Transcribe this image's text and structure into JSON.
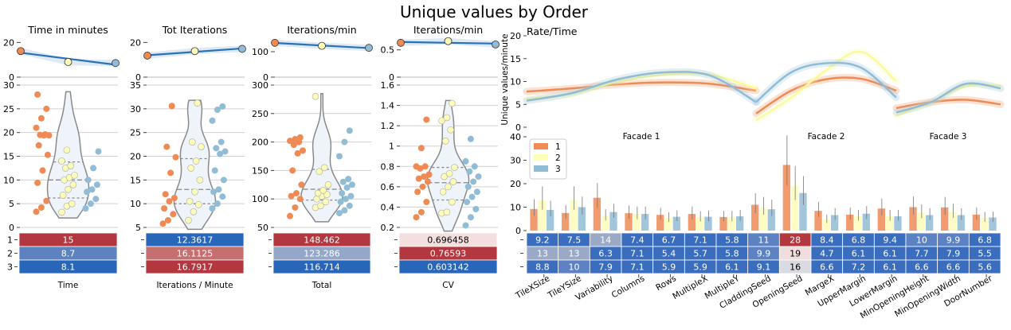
{
  "figure": {
    "title": "Unique values by Order"
  },
  "orders": [
    "1",
    "2",
    "3"
  ],
  "colors": {
    "1": "#ef8a55",
    "2": "#fdfdb8",
    "3": "#90bcd6",
    "line": "#2a72b5",
    "band": "#c6dbef",
    "violet_fill": "#eef4f9",
    "violet_edge": "#8a8a8a"
  },
  "chart_data": [
    {
      "type": "scatter",
      "panel": "top-line",
      "title": "Time in minutes",
      "x": [
        "1",
        "2",
        "3"
      ],
      "values": [
        15,
        8.7,
        8.1
      ],
      "ylim": [
        0,
        22
      ],
      "yticks": [
        0,
        20
      ]
    },
    {
      "type": "scatter",
      "panel": "top-line",
      "title": "Tot Iterations",
      "x": [
        "1",
        "2",
        "3"
      ],
      "values": [
        12.4,
        15.0,
        16.3
      ],
      "ylim": [
        0,
        22
      ],
      "yticks": [
        0,
        20
      ]
    },
    {
      "type": "scatter",
      "panel": "top-line",
      "title": "Iterations/min",
      "x": [
        "1",
        "2",
        "3"
      ],
      "values": [
        135,
        123,
        115
      ],
      "ylim": [
        0,
        150
      ],
      "yticks": [
        0,
        100
      ]
    },
    {
      "type": "scatter",
      "panel": "top-line",
      "title": "Iterations/min",
      "x": [
        "1",
        "2",
        "3"
      ],
      "values": [
        0.63,
        0.66,
        0.6
      ],
      "ylim": [
        0,
        0.7
      ],
      "yticks": [
        0,
        0.5
      ],
      "ytick_labels": [
        "0",
        "0.5"
      ]
    },
    {
      "type": "violin",
      "ylim": [
        0,
        30
      ],
      "yticks": [
        0,
        5,
        10,
        15,
        20,
        25,
        30
      ],
      "quartiles": [
        6.2,
        10,
        13.8
      ],
      "series": [
        {
          "name": "1",
          "values": [
            3.3,
            4.2,
            5.6,
            9.4,
            12.0,
            15.3,
            17.3,
            19.4,
            19.4,
            19.5,
            19.6,
            21.0,
            23.0,
            25.0,
            28.0
          ]
        },
        {
          "name": "2",
          "values": [
            3.2,
            4.5,
            5.0,
            6.8,
            8.0,
            9.0,
            10.0,
            10.5,
            11.0,
            12.5,
            13.0,
            14.0,
            16.3
          ]
        },
        {
          "name": "3",
          "values": [
            4.0,
            5.0,
            6.0,
            7.5,
            8.0,
            9.0,
            10.0,
            12.5,
            16.0
          ]
        }
      ]
    },
    {
      "type": "violin",
      "ylim": [
        5,
        35
      ],
      "yticks": [
        5,
        10,
        15,
        20,
        25,
        30,
        35
      ],
      "quartiles": [
        10,
        13,
        19.5
      ],
      "series": [
        {
          "name": "1",
          "values": [
            5.8,
            6.5,
            7.8,
            9.0,
            10.5,
            11.2,
            12.0,
            16.5,
            19.8,
            22.0,
            30.6
          ]
        },
        {
          "name": "2",
          "values": [
            6.5,
            8.3,
            9.8,
            10.5,
            12.5,
            15.0,
            17.5,
            19.0,
            22.0,
            23.0,
            31.2
          ]
        },
        {
          "name": "3",
          "values": [
            9.0,
            10.0,
            11.5,
            12.5,
            13.0,
            15.0,
            17.0,
            20.5,
            21.0,
            21.7,
            23.0,
            27.5,
            29.8,
            30.5
          ]
        }
      ]
    },
    {
      "type": "violin",
      "ylim": [
        50,
        300
      ],
      "yticks": [
        50,
        100,
        150,
        200,
        250,
        300
      ],
      "quartiles": [
        98,
        117,
        152
      ],
      "series": [
        {
          "name": "1",
          "values": [
            70,
            85,
            100,
            105,
            110,
            125,
            150,
            180,
            185,
            195,
            200,
            202,
            205,
            208
          ]
        },
        {
          "name": "2",
          "values": [
            85,
            88,
            95,
            100,
            105,
            108,
            110,
            115,
            125,
            148,
            155,
            280
          ]
        },
        {
          "name": "3",
          "values": [
            75,
            80,
            88,
            95,
            100,
            105,
            110,
            120,
            125,
            130,
            135,
            175,
            200,
            220
          ]
        }
      ]
    },
    {
      "type": "violin",
      "ylim": [
        0.2,
        1.6
      ],
      "yticks": [
        0.2,
        0.4,
        0.6,
        0.8,
        1.0,
        1.2,
        1.4,
        1.6
      ],
      "quartiles": [
        0.47,
        0.64,
        0.79
      ],
      "series": [
        {
          "name": "1",
          "values": [
            0.3,
            0.35,
            0.45,
            0.55,
            0.6,
            0.65,
            0.68,
            0.7,
            0.72,
            0.78,
            0.8,
            0.8,
            0.98,
            1.26
          ]
        },
        {
          "name": "2",
          "values": [
            0.34,
            0.35,
            0.45,
            0.55,
            0.6,
            0.65,
            0.7,
            0.73,
            0.79,
            1.05,
            1.16,
            1.25,
            1.28,
            1.42
          ]
        },
        {
          "name": "3",
          "values": [
            0.22,
            0.3,
            0.38,
            0.45,
            0.5,
            0.55,
            0.6,
            0.65,
            0.7,
            0.75,
            0.8,
            0.85,
            1.07
          ]
        }
      ]
    },
    {
      "type": "table",
      "xlabel": "Time",
      "rows": [
        "1",
        "2",
        "3"
      ],
      "values": [
        "15",
        "8.7",
        "8.1"
      ],
      "cell_colors": [
        "#b2373f",
        "#5c82bf",
        "#2766b9"
      ]
    },
    {
      "type": "table",
      "xlabel": "Iterations / Minute",
      "rows": [
        "1",
        "2",
        "3"
      ],
      "values": [
        "12.3617",
        "16.1125",
        "16.7917"
      ],
      "cell_colors": [
        "#2766b9",
        "#c56f71",
        "#b2373f"
      ]
    },
    {
      "type": "table",
      "xlabel": "Total",
      "rows": [
        "1",
        "2",
        "3"
      ],
      "values": [
        "148.462",
        "123.286",
        "116.714"
      ],
      "cell_colors": [
        "#b2373f",
        "#95a7c8",
        "#2766b9"
      ]
    },
    {
      "type": "table",
      "xlabel": "CV",
      "rows": [
        "1",
        "2",
        "3"
      ],
      "values": [
        "0.696458",
        "0.76593",
        "0.603142"
      ],
      "cell_colors": [
        "#f4dfdf",
        "#b2373f",
        "#2766b9"
      ],
      "text_colors": [
        "#000000",
        "#ffffff",
        "#ffffff"
      ]
    },
    {
      "type": "line",
      "title": "Rate/Time",
      "ylabel": "Unique values/minute",
      "ylim": [
        0,
        20
      ],
      "yticks": [
        0,
        5,
        10,
        15,
        20
      ],
      "facades": [
        "Facade 1",
        "Facade 2",
        "Facade 3"
      ],
      "series": [
        {
          "name": "1",
          "facade1": [
            7.8,
            8.5,
            9.4,
            9.8,
            9.5,
            8.0
          ],
          "facade2": [
            3.0,
            8.0,
            10.5,
            10.6,
            8.0
          ],
          "facade3": [
            4.2,
            5.5,
            6.0,
            5.0
          ]
        },
        {
          "name": "2",
          "facade1": [
            6.2,
            7.3,
            10.0,
            11.5,
            11.5,
            8.5
          ],
          "facade2": [
            1.5,
            6.5,
            12.5,
            16.5,
            10.0
          ],
          "facade3": [
            2.5,
            5.5,
            9.0,
            9.0
          ]
        },
        {
          "name": "3",
          "facade1": [
            5.8,
            7.5,
            10.5,
            12.0,
            11.3,
            5.5
          ],
          "facade2": [
            5.5,
            12.0,
            14.0,
            13.0,
            6.5
          ],
          "facade3": [
            3.2,
            5.5,
            9.5,
            8.5
          ]
        }
      ]
    },
    {
      "type": "bar",
      "ylim": [
        0,
        40
      ],
      "yticks": [
        0,
        10,
        20,
        30,
        40
      ],
      "legend": "top-left",
      "categories": [
        "TileXSize",
        "TileYSize",
        "Variability",
        "Columns",
        "Rows",
        "MultipleX",
        "MultipleY",
        "CladdingSeed",
        "OpeningSeed",
        "MargeX",
        "UpperMargin",
        "LowerMargin",
        "MinOpeningHeight",
        "MinOpeningWidth",
        "DoorNumber"
      ],
      "series": [
        {
          "name": "1",
          "values": [
            9.2,
            7.5,
            14,
            7.4,
            6.7,
            7.1,
            5.8,
            11,
            28,
            8.4,
            6.8,
            9.4,
            10,
            9.9,
            6.8
          ]
        },
        {
          "name": "2",
          "values": [
            13,
            13,
            6.3,
            7.1,
            5.4,
            5.7,
            5.8,
            9.9,
            19,
            4.7,
            6.1,
            6.1,
            7.7,
            7.9,
            5.5
          ]
        },
        {
          "name": "3",
          "values": [
            8.8,
            10,
            7.9,
            7.1,
            5.9,
            5.9,
            6.1,
            9.1,
            16,
            6.6,
            7.2,
            6.1,
            6.6,
            6.6,
            5.6
          ]
        }
      ],
      "table_values": [
        [
          "9.2",
          "7.5",
          "14",
          "7.4",
          "6.7",
          "7.1",
          "5.8",
          "11",
          "28",
          "8.4",
          "6.8",
          "9.4",
          "10",
          "9.9",
          "6.8"
        ],
        [
          "13",
          "13",
          "6.3",
          "7.1",
          "5.4",
          "5.7",
          "5.8",
          "9.9",
          "19",
          "4.7",
          "6.1",
          "6.1",
          "7.7",
          "7.9",
          "5.5"
        ],
        [
          "8.8",
          "10",
          "7.9",
          "7.1",
          "5.9",
          "5.9",
          "6.1",
          "9.1",
          "16",
          "6.6",
          "7.2",
          "6.1",
          "6.6",
          "6.6",
          "5.6"
        ]
      ]
    }
  ]
}
